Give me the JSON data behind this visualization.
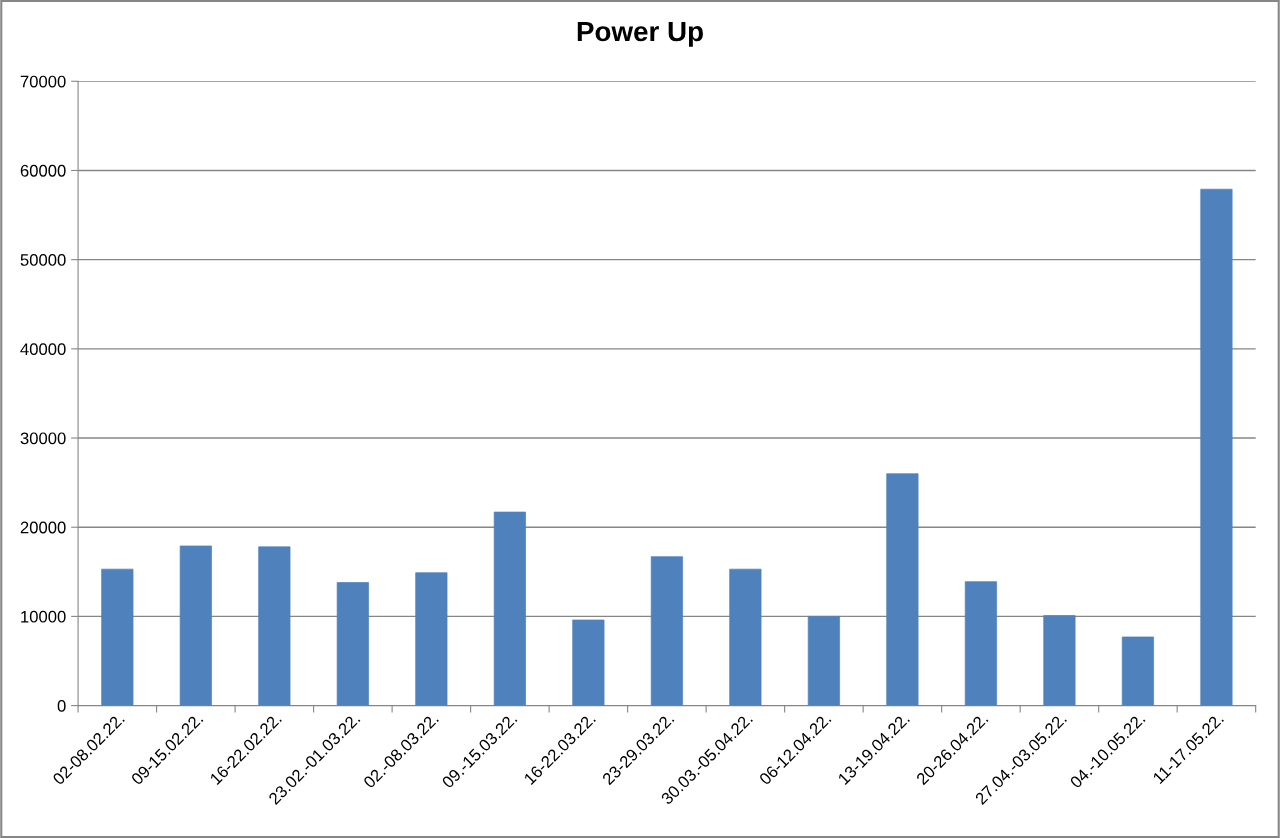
{
  "chart_data": {
    "type": "bar",
    "title": "Power Up",
    "categories": [
      "02-08.02.22.",
      "09-15.02.22.",
      "16-22.02.22.",
      "23.02.-01.03.22.",
      "02.-08.03.22.",
      "09.-15.03.22.",
      "16-22.03.22.",
      "23-29.03.22.",
      "30.03.-05.04.22.",
      "06-12.04.22.",
      "13-19.04.22.",
      "20-26.04.22.",
      "27.04.-03.05.22.",
      "04.-10.05.22.",
      "11-17.05.22."
    ],
    "values": [
      15300,
      17900,
      17800,
      13800,
      14900,
      21700,
      9600,
      16700,
      15300,
      10000,
      26000,
      13900,
      10100,
      7700,
      57900
    ],
    "color": "#4f81bd",
    "ylim": [
      0,
      70000
    ],
    "yticks": [
      0,
      10000,
      20000,
      30000,
      40000,
      50000,
      60000,
      70000
    ],
    "grid": "y",
    "legend": false
  }
}
